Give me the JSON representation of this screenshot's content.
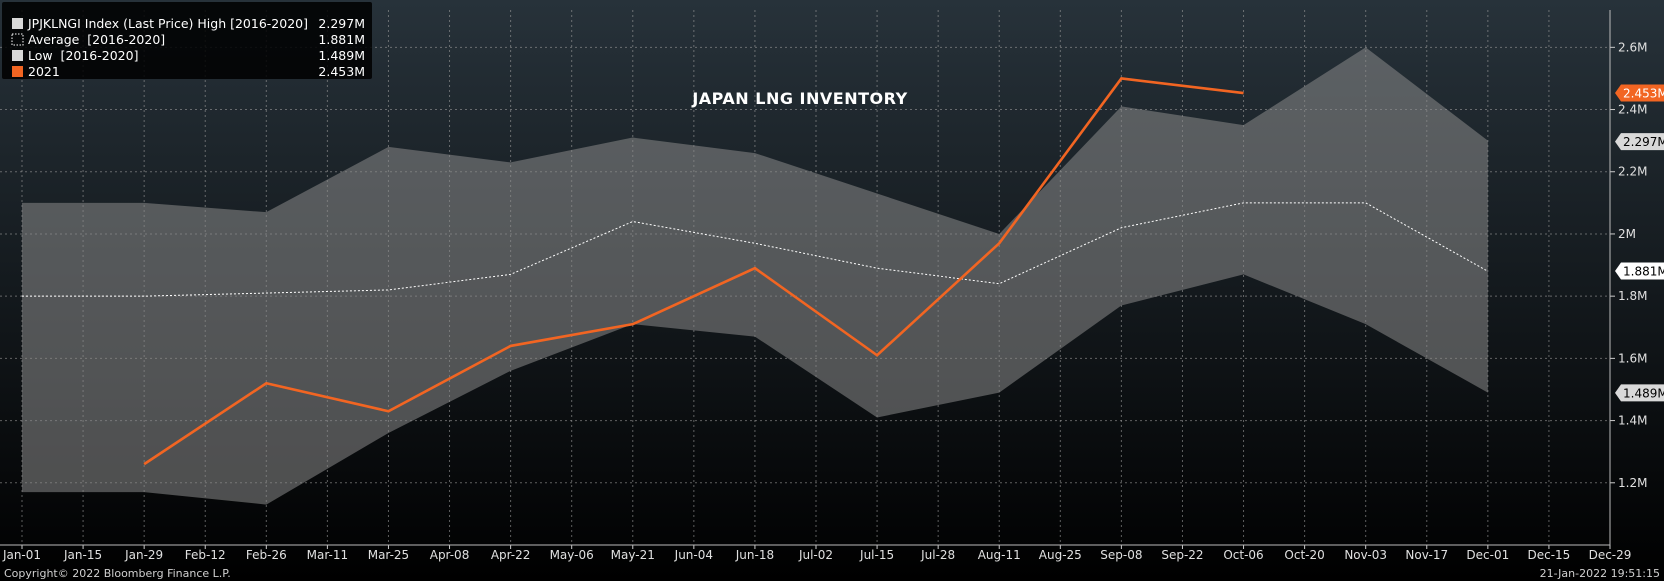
{
  "chart_data": {
    "type": "area",
    "title": "JAPAN LNG INVENTORY",
    "xlabel": "",
    "ylabel": "",
    "x_tick_labels": [
      "Jan-01",
      "Jan-15",
      "Jan-29",
      "Feb-12",
      "Feb-26",
      "Mar-11",
      "Mar-25",
      "Apr-08",
      "Apr-22",
      "May-06",
      "May-21",
      "Jun-04",
      "Jun-18",
      "Jul-02",
      "Jul-15",
      "Jul-28",
      "Aug-11",
      "Aug-25",
      "Sep-08",
      "Sep-22",
      "Oct-06",
      "Oct-20",
      "Nov-03",
      "Nov-17",
      "Dec-01",
      "Dec-15",
      "Dec-29"
    ],
    "y_ticks": [
      1.2,
      1.4,
      1.6,
      1.8,
      2.0,
      2.2,
      2.4,
      2.6
    ],
    "y_tick_labels": [
      "1.2M",
      "1.4M",
      "1.6M",
      "1.8M",
      "2M",
      "2.2M",
      "2.4M",
      "2.6M"
    ],
    "ylim": [
      1.0,
      2.72
    ],
    "x_dates": [
      "Jan-01",
      "Jan-29",
      "Feb-26",
      "Mar-25",
      "Apr-22",
      "May-21",
      "Jun-18",
      "Jul-15",
      "Aug-11",
      "Sep-08",
      "Oct-06",
      "Nov-03",
      "Dec-01",
      "Dec-29"
    ],
    "series": [
      {
        "name": "JPJKLNGI Index (Last Price) High [2016-2020]",
        "role": "high",
        "color": "#d8d8d8",
        "values": [
          2.1,
          2.1,
          2.07,
          2.28,
          2.23,
          2.31,
          2.26,
          2.13,
          2.0,
          2.41,
          2.35,
          2.6,
          2.3
        ]
      },
      {
        "name": "Average  [2016-2020]",
        "role": "average",
        "color": "#ffffff",
        "values": [
          1.8,
          1.8,
          1.81,
          1.82,
          1.87,
          2.04,
          1.97,
          1.89,
          1.84,
          2.02,
          2.1,
          2.1,
          1.88
        ]
      },
      {
        "name": "Low  [2016-2020]",
        "role": "low",
        "color": "#d8d8d8",
        "values": [
          1.17,
          1.17,
          1.13,
          1.36,
          1.56,
          1.71,
          1.67,
          1.41,
          1.49,
          1.77,
          1.87,
          1.71,
          1.49
        ]
      },
      {
        "name": "2021",
        "role": "current",
        "color": "#f26522",
        "x_start_index": 1,
        "values": [
          1.26,
          1.52,
          1.43,
          1.64,
          1.71,
          1.89,
          1.61,
          1.97,
          2.5,
          2.453
        ]
      }
    ],
    "legend": {
      "placement": "top-left",
      "entries": [
        {
          "label": "JPJKLNGI Index (Last Price) High [2016-2020]",
          "value": "2.297M",
          "swatch": "solid-light"
        },
        {
          "label": "Average  [2016-2020]",
          "value": "1.881M",
          "swatch": "dotted"
        },
        {
          "label": "Low  [2016-2020]",
          "value": "1.489M",
          "swatch": "solid-light"
        },
        {
          "label": "2021",
          "value": "2.453M",
          "swatch": "orange"
        }
      ]
    },
    "last_value_tags": [
      {
        "text": "2.453M",
        "value": 2.453,
        "color": "#f26522",
        "text_color": "#ffffff"
      },
      {
        "text": "2.297M",
        "value": 2.297,
        "color": "#d9d9d9",
        "text_color": "#000000"
      },
      {
        "text": "1.881M",
        "value": 1.881,
        "color": "#ffffff",
        "text_color": "#000000"
      },
      {
        "text": "1.489M",
        "value": 1.489,
        "color": "#d9d9d9",
        "text_color": "#000000"
      }
    ],
    "grid": true
  },
  "footer": {
    "copyright": "Copyright© 2022 Bloomberg Finance L.P.",
    "timestamp": "21-Jan-2022 19:51:15"
  },
  "colors": {
    "background_top": "#27323a",
    "background_bottom": "#000000",
    "band_fill": "#8a8a8a",
    "grid": "#9a9a9a",
    "accent": "#f26522"
  }
}
